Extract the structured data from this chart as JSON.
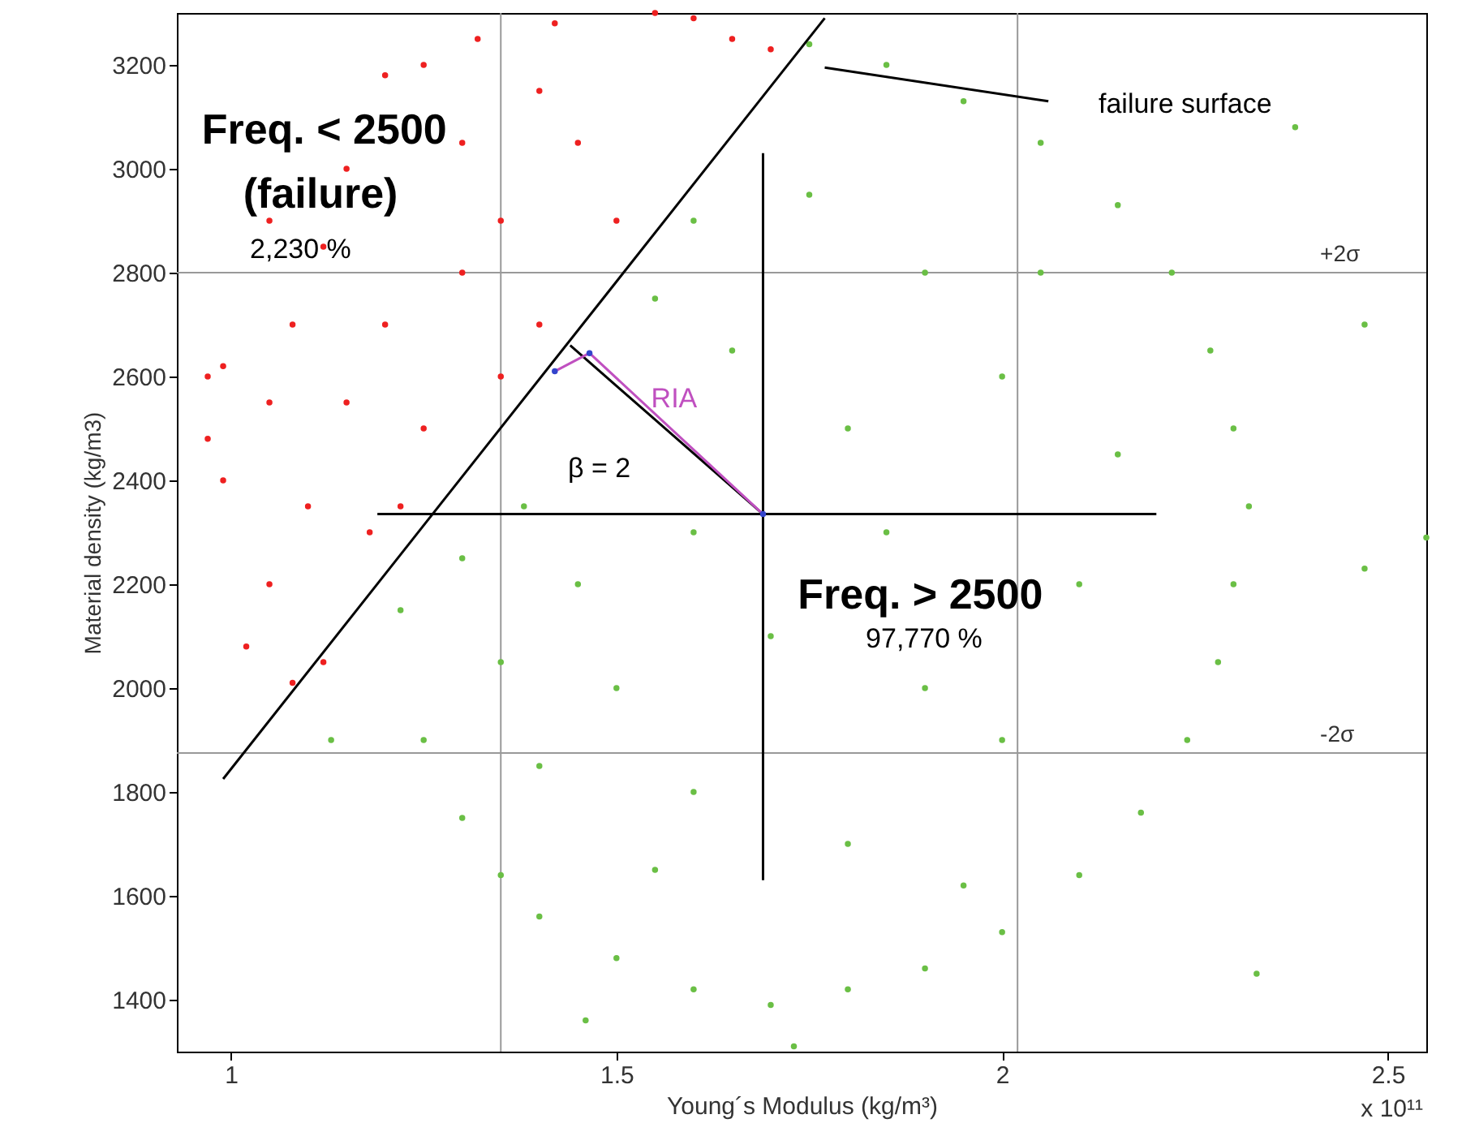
{
  "chart_data": {
    "type": "scatter",
    "xlabel": "Young´s Modulus (kg/m³)",
    "ylabel": "Material density (kg/m3)",
    "xlim": [
      0.93,
      2.55
    ],
    "xticks": [
      1,
      1.5,
      2,
      2.5
    ],
    "ylim": [
      1300,
      3300
    ],
    "yticks": [
      1400,
      1600,
      1800,
      2000,
      2200,
      2400,
      2600,
      2800,
      3000,
      3200
    ],
    "grid": false,
    "series": [
      {
        "marker": "circle",
        "color": "#6abf45",
        "x": [
          1.22,
          1.25,
          1.3,
          1.35,
          1.4,
          1.5,
          1.6,
          1.7,
          1.8,
          1.9,
          2.0,
          2.1,
          2.18,
          2.24,
          2.28,
          2.3,
          2.32,
          2.3,
          2.27,
          2.22,
          2.15,
          2.05,
          1.95,
          1.85,
          1.75,
          1.6,
          1.55,
          2.47,
          2.38,
          2.55,
          2.47,
          1.73,
          1.13,
          1.46,
          2.33,
          1.5,
          1.6,
          1.8,
          2.0,
          2.1,
          2.0,
          1.9,
          1.8,
          1.7,
          1.6,
          1.45,
          1.35,
          1.4,
          1.9,
          2.15,
          1.75,
          1.65,
          1.85,
          1.55,
          1.95,
          2.05,
          1.38,
          1.3
        ],
        "values": [
          2150,
          1900,
          1750,
          1640,
          1560,
          1480,
          1420,
          1390,
          1420,
          1460,
          1530,
          1640,
          1760,
          1900,
          2050,
          2200,
          2350,
          2500,
          2650,
          2800,
          2930,
          3050,
          3130,
          3200,
          3240,
          2900,
          2750,
          2700,
          3080,
          2290,
          2230,
          1310,
          1900,
          1360,
          1450,
          2000,
          1800,
          1700,
          1900,
          2200,
          2600,
          2800,
          2500,
          2100,
          2300,
          2200,
          2050,
          1850,
          2000,
          2450,
          2950,
          2650,
          2300,
          1650,
          1620,
          2800,
          2350,
          2250
        ]
      },
      {
        "marker": "circle",
        "color": "#ee2020",
        "x": [
          0.97,
          0.97,
          0.99,
          1.02,
          1.05,
          1.08,
          1.12,
          1.1,
          1.05,
          1.08,
          1.12,
          1.15,
          1.2,
          1.25,
          1.32,
          1.42,
          1.55,
          1.6,
          1.65,
          1.7,
          1.2,
          1.3,
          1.25,
          1.35,
          1.45,
          1.18,
          1.22,
          1.35,
          1.4,
          1.5,
          1.15,
          1.3,
          1.4,
          0.99,
          1.05
        ],
        "values": [
          2600,
          2480,
          2400,
          2080,
          2200,
          2010,
          2050,
          2350,
          2550,
          2700,
          2850,
          3000,
          3180,
          3200,
          3250,
          3280,
          3300,
          3290,
          3250,
          3230,
          2700,
          2800,
          2500,
          2900,
          3050,
          2300,
          2350,
          2600,
          2700,
          2900,
          2550,
          3050,
          3150,
          2620,
          2900
        ]
      },
      {
        "type": "line",
        "color": "#000000",
        "x": [
          0.99,
          1.77
        ],
        "values": [
          1825,
          3290
        ]
      },
      {
        "type": "line",
        "color": "#000000",
        "x": [
          1.19,
          2.2
        ],
        "values": [
          2335,
          2335
        ]
      },
      {
        "type": "line",
        "color": "#000000",
        "x": [
          1.69,
          1.69
        ],
        "values": [
          1630,
          3030
        ]
      },
      {
        "type": "line",
        "color": "#000000",
        "x": [
          1.69,
          1.44
        ],
        "values": [
          2335,
          2660
        ]
      },
      {
        "type": "line",
        "color": "#c050c0",
        "x": [
          1.69,
          1.465,
          1.42
        ],
        "values": [
          2335,
          2645,
          2610
        ]
      },
      {
        "type": "line",
        "color": "#000000",
        "x": [
          2.06,
          1.77
        ],
        "values": [
          3130,
          3195
        ]
      },
      {
        "marker": "circle",
        "color": "#3344cc",
        "x": [
          1.42,
          1.465,
          1.69
        ],
        "values": [
          2610,
          2645,
          2335
        ]
      }
    ],
    "ref_lines": [
      {
        "axis": "y",
        "value": 2800,
        "label": "+2σ",
        "color": "#999999"
      },
      {
        "axis": "y",
        "value": 1875,
        "label": "-2σ",
        "color": "#999999"
      },
      {
        "axis": "x",
        "value": 1.35,
        "label": null,
        "color": "#999999"
      },
      {
        "axis": "x",
        "value": 2.02,
        "label": null,
        "color": "#999999"
      }
    ],
    "annotations": [
      "Freq. < 2500",
      "(failure)",
      "2,230 %",
      "Freq. > 2500",
      "97,770 %",
      "RIA",
      "β = 2",
      "failure surface",
      "x 10¹¹"
    ]
  }
}
